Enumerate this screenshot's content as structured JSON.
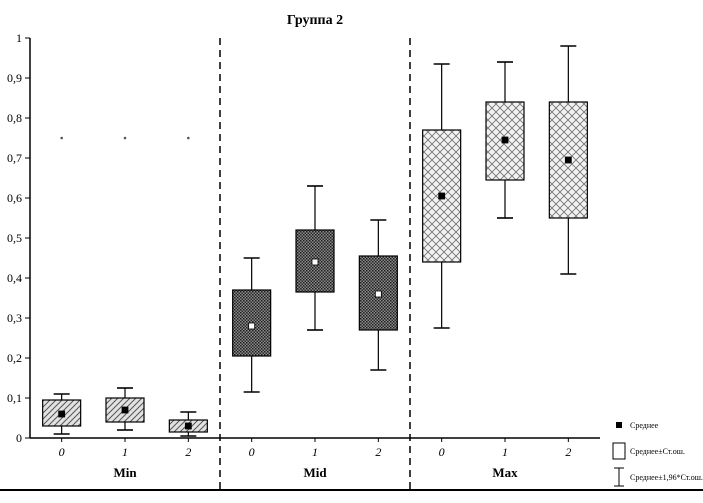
{
  "chart_data": {
    "type": "boxplot",
    "title": "Группа 2",
    "ylim": [
      0,
      1
    ],
    "ytick_step": 0.1,
    "yticks": [
      "0",
      "0,1",
      "0,2",
      "0,3",
      "0,4",
      "0,5",
      "0,6",
      "0,7",
      "0,8",
      "0,9",
      "1"
    ],
    "x_categories_per_group": [
      "0",
      "1",
      "2"
    ],
    "groups": [
      {
        "label": "Min",
        "pattern": "diagonal",
        "mean_marker_fill": "#000000",
        "boxes": [
          {
            "x_label": "0",
            "mean": 0.06,
            "box_low": 0.03,
            "box_high": 0.095,
            "whisker_low": 0.01,
            "whisker_high": 0.11,
            "outliers": [
              0.75
            ]
          },
          {
            "x_label": "1",
            "mean": 0.07,
            "box_low": 0.04,
            "box_high": 0.1,
            "whisker_low": 0.02,
            "whisker_high": 0.125,
            "outliers": [
              0.75
            ]
          },
          {
            "x_label": "2",
            "mean": 0.03,
            "box_low": 0.015,
            "box_high": 0.045,
            "whisker_low": 0.005,
            "whisker_high": 0.065,
            "outliers": [
              0.75
            ]
          }
        ]
      },
      {
        "label": "Mid",
        "pattern": "dense",
        "mean_marker_fill": "#ffffff",
        "boxes": [
          {
            "x_label": "0",
            "mean": 0.28,
            "box_low": 0.205,
            "box_high": 0.37,
            "whisker_low": 0.115,
            "whisker_high": 0.45,
            "outliers": []
          },
          {
            "x_label": "1",
            "mean": 0.44,
            "box_low": 0.365,
            "box_high": 0.52,
            "whisker_low": 0.27,
            "whisker_high": 0.63,
            "outliers": []
          },
          {
            "x_label": "2",
            "mean": 0.36,
            "box_low": 0.27,
            "box_high": 0.455,
            "whisker_low": 0.17,
            "whisker_high": 0.545,
            "outliers": []
          }
        ]
      },
      {
        "label": "Max",
        "pattern": "cross",
        "mean_marker_fill": "#000000",
        "boxes": [
          {
            "x_label": "0",
            "mean": 0.605,
            "box_low": 0.44,
            "box_high": 0.77,
            "whisker_low": 0.275,
            "whisker_high": 0.935,
            "outliers": []
          },
          {
            "x_label": "1",
            "mean": 0.745,
            "box_low": 0.645,
            "box_high": 0.84,
            "whisker_low": 0.55,
            "whisker_high": 0.94,
            "outliers": []
          },
          {
            "x_label": "2",
            "mean": 0.695,
            "box_low": 0.55,
            "box_high": 0.84,
            "whisker_low": 0.41,
            "whisker_high": 0.98,
            "outliers": []
          }
        ]
      }
    ],
    "legend": [
      {
        "symbol": "mean-marker",
        "label": "Среднее"
      },
      {
        "symbol": "box",
        "label": "Среднее±Ст.ош."
      },
      {
        "symbol": "whisker",
        "label": "Среднее±1,96*Ст.ош."
      }
    ],
    "colors": {
      "axis": "#000000",
      "background": "#ffffff"
    }
  }
}
